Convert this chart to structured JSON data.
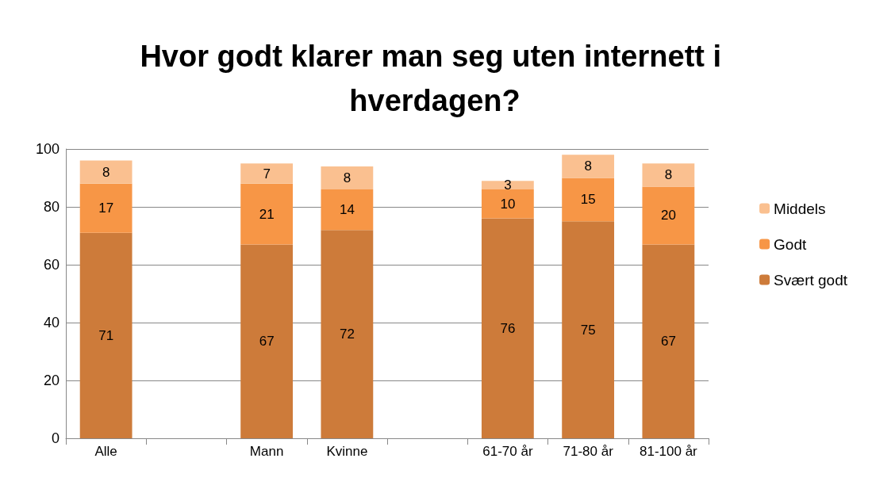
{
  "chart_data": {
    "type": "bar",
    "title": "Hvor godt klarer man seg uten internett i hverdagen?",
    "categories": [
      "Alle",
      null,
      "Mann",
      "Kvinne",
      null,
      "61-70 år",
      "71-80 år",
      "81-100 år"
    ],
    "stacked": true,
    "series": [
      {
        "name": "Svært godt",
        "color": "#cd7b3a",
        "values": [
          71,
          null,
          67,
          72,
          null,
          76,
          75,
          67
        ]
      },
      {
        "name": "Godt",
        "color": "#f79646",
        "values": [
          17,
          null,
          21,
          14,
          null,
          10,
          15,
          20
        ]
      },
      {
        "name": "Middels",
        "color": "#fac090",
        "values": [
          8,
          null,
          7,
          8,
          null,
          3,
          8,
          8
        ]
      }
    ],
    "ylim": [
      0,
      100
    ],
    "yticks": [
      0,
      20,
      40,
      60,
      80,
      100
    ],
    "grid": "y",
    "legend": "right",
    "data_labels": true
  }
}
